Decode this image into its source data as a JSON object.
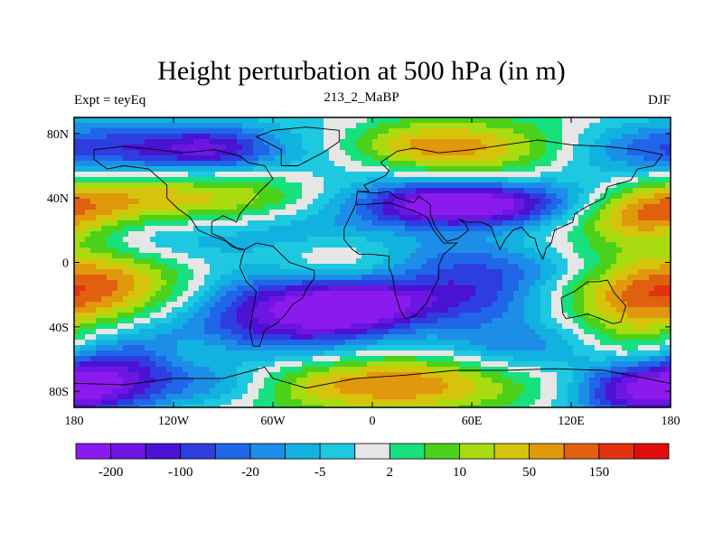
{
  "chart_data": {
    "type": "heatmap",
    "title": "Height perturbation at 500 hPa (in m)",
    "left_subtitle": "Expt = teyEq",
    "center_subtitle": "213_2_MaBP",
    "right_subtitle": "DJF",
    "x_range": [
      -180,
      180
    ],
    "y_range": [
      -90,
      90
    ],
    "x_ticks": [
      {
        "value": -180,
        "label": "180"
      },
      {
        "value": -120,
        "label": "120W"
      },
      {
        "value": -60,
        "label": "60W"
      },
      {
        "value": 0,
        "label": "0"
      },
      {
        "value": 60,
        "label": "60E"
      },
      {
        "value": 120,
        "label": "120E"
      },
      {
        "value": 180,
        "label": "180"
      }
    ],
    "y_ticks": [
      {
        "value": 80,
        "label": "80N"
      },
      {
        "value": 40,
        "label": "40N"
      },
      {
        "value": 0,
        "label": "0"
      },
      {
        "value": -40,
        "label": "40S"
      },
      {
        "value": -80,
        "label": "80S"
      }
    ],
    "colorbar": {
      "colors": [
        "#8b1aef",
        "#6d16e2",
        "#4b12d4",
        "#2e3ddf",
        "#1f66e8",
        "#1d8ee8",
        "#12b2e0",
        "#1ec8e0",
        "#e6e6e6",
        "#17e07f",
        "#4bd11a",
        "#a9dc10",
        "#d6c40c",
        "#e0980c",
        "#e0600f",
        "#e2320f",
        "#e00c0c"
      ],
      "labels": [
        "-200",
        "-100",
        "-20",
        "-5",
        "2",
        "10",
        "50",
        "150"
      ]
    },
    "notes": "Contour-filled field; band values approximated by level indices (-8..8)"
  },
  "colors": {
    "background": "#ffffff",
    "axis": "#000000",
    "coastline": "#000000"
  }
}
